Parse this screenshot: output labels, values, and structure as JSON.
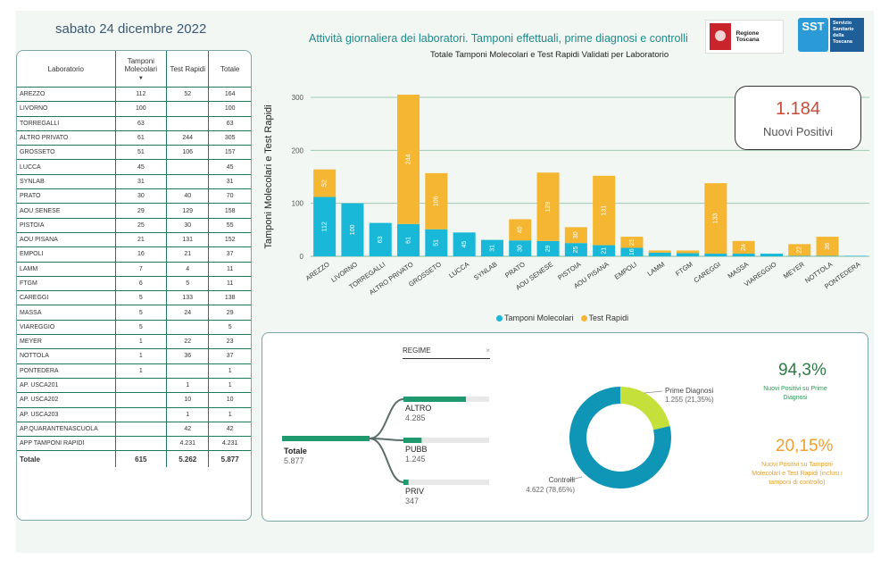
{
  "header": {
    "date": "sabato 24 dicembre 2022",
    "title": "Attività giornaliera dei laboratori. Tamponi effettuali, prime diagnosi e controlli",
    "logo_rt": "Regione Toscana",
    "logo_sst_short": "SST",
    "logo_sst_long": "Servizio Sanitario della Toscana"
  },
  "table": {
    "headers": [
      "Laboratorio",
      "Tamponi Molecolari",
      "Test Rapidi",
      "Totale"
    ],
    "rows": [
      [
        "AREZZO",
        "112",
        "52",
        "164"
      ],
      [
        "LIVORNO",
        "100",
        "",
        "100"
      ],
      [
        "TORREGALLI",
        "63",
        "",
        "63"
      ],
      [
        "ALTRO PRIVATO",
        "61",
        "244",
        "305"
      ],
      [
        "GROSSETO",
        "51",
        "106",
        "157"
      ],
      [
        "LUCCA",
        "45",
        "",
        "45"
      ],
      [
        "SYNLAB",
        "31",
        "",
        "31"
      ],
      [
        "PRATO",
        "30",
        "40",
        "70"
      ],
      [
        "AOU SENESE",
        "29",
        "129",
        "158"
      ],
      [
        "PISTOIA",
        "25",
        "30",
        "55"
      ],
      [
        "AOU PISANA",
        "21",
        "131",
        "152"
      ],
      [
        "EMPOLI",
        "16",
        "21",
        "37"
      ],
      [
        "LAMM",
        "7",
        "4",
        "11"
      ],
      [
        "FTGM",
        "6",
        "5",
        "11"
      ],
      [
        "CAREGGI",
        "5",
        "133",
        "138"
      ],
      [
        "MASSA",
        "5",
        "24",
        "29"
      ],
      [
        "VIAREGGIO",
        "5",
        "",
        "5"
      ],
      [
        "MEYER",
        "1",
        "22",
        "23"
      ],
      [
        "NOTTOLA",
        "1",
        "36",
        "37"
      ],
      [
        "PONTEDERA",
        "1",
        "",
        "1"
      ],
      [
        "AP. USCA201",
        "",
        "1",
        "1"
      ],
      [
        "AP. USCA202",
        "",
        "10",
        "10"
      ],
      [
        "AP. USCA203",
        "",
        "1",
        "1"
      ],
      [
        "AP.QUARANTENASCUOLA",
        "",
        "42",
        "42"
      ],
      [
        "APP TAMPONI RAPIDI",
        "",
        "4.231",
        "4.231"
      ]
    ],
    "total": [
      "Totale",
      "615",
      "5.262",
      "5.877"
    ]
  },
  "kpi": {
    "value": "1.184",
    "label": "Nuovi Positivi"
  },
  "chart_data": {
    "type": "bar",
    "title": "Totale Tamponi Molecolari e Test Rapidi Validati per Laboratorio",
    "ylabel": "Tamponi Molecolari e Test Rapidi",
    "ylim": [
      0,
      300
    ],
    "yticks": [
      0,
      100,
      200,
      300
    ],
    "categories": [
      "AREZZO",
      "LIVORNO",
      "TORREGALLI",
      "ALTRO PRIVATO",
      "GROSSETO",
      "LUCCA",
      "SYNLAB",
      "PRATO",
      "AOU SENESE",
      "PISTOIA",
      "AOU PISANA",
      "EMPOLI",
      "LAMM",
      "FTGM",
      "CAREGGI",
      "MASSA",
      "VIAREGGIO",
      "MEYER",
      "NOTTOLA",
      "PONTEDERA"
    ],
    "stacked": true,
    "series": [
      {
        "name": "Tamponi Molecolari",
        "color": "#1ab8d8",
        "values": [
          112,
          100,
          63,
          61,
          51,
          45,
          31,
          30,
          29,
          25,
          21,
          16,
          7,
          6,
          5,
          5,
          5,
          1,
          1,
          1
        ]
      },
      {
        "name": "Test Rapidi",
        "color": "#f5b731",
        "values": [
          52,
          0,
          0,
          244,
          106,
          0,
          0,
          40,
          129,
          30,
          131,
          21,
          4,
          5,
          133,
          24,
          0,
          22,
          36,
          0
        ]
      }
    ],
    "grid": true,
    "legend": "bottom"
  },
  "tree": {
    "filter_label": "REGIME",
    "filter_clear": "×",
    "root": {
      "label": "Totale",
      "value": "5.877"
    },
    "children": [
      {
        "label": "ALTRO",
        "value": "4.285",
        "fraction": 0.729
      },
      {
        "label": "PUBB",
        "value": "1.245",
        "fraction": 0.212
      },
      {
        "label": "PRIV",
        "value": "347",
        "fraction": 0.059
      }
    ]
  },
  "donut": {
    "slices": [
      {
        "label": "Prime Diagnosi",
        "value": "1.255 (21,35%)",
        "fraction": 0.2135,
        "color": "#c5e03a"
      },
      {
        "label": "Controlli",
        "value": "4.622 (78,65%)",
        "fraction": 0.7865,
        "color": "#0f95b5"
      }
    ]
  },
  "side_kpis": {
    "a_value": "94,3%",
    "a_label": "Nuovi Positivi su Prime Diagnosi",
    "b_value": "20,15%",
    "b_label": "Nuovi Positivi su Tamponi Molecolari e Test Rapidi (inclusi i tamponi di controllo)"
  }
}
